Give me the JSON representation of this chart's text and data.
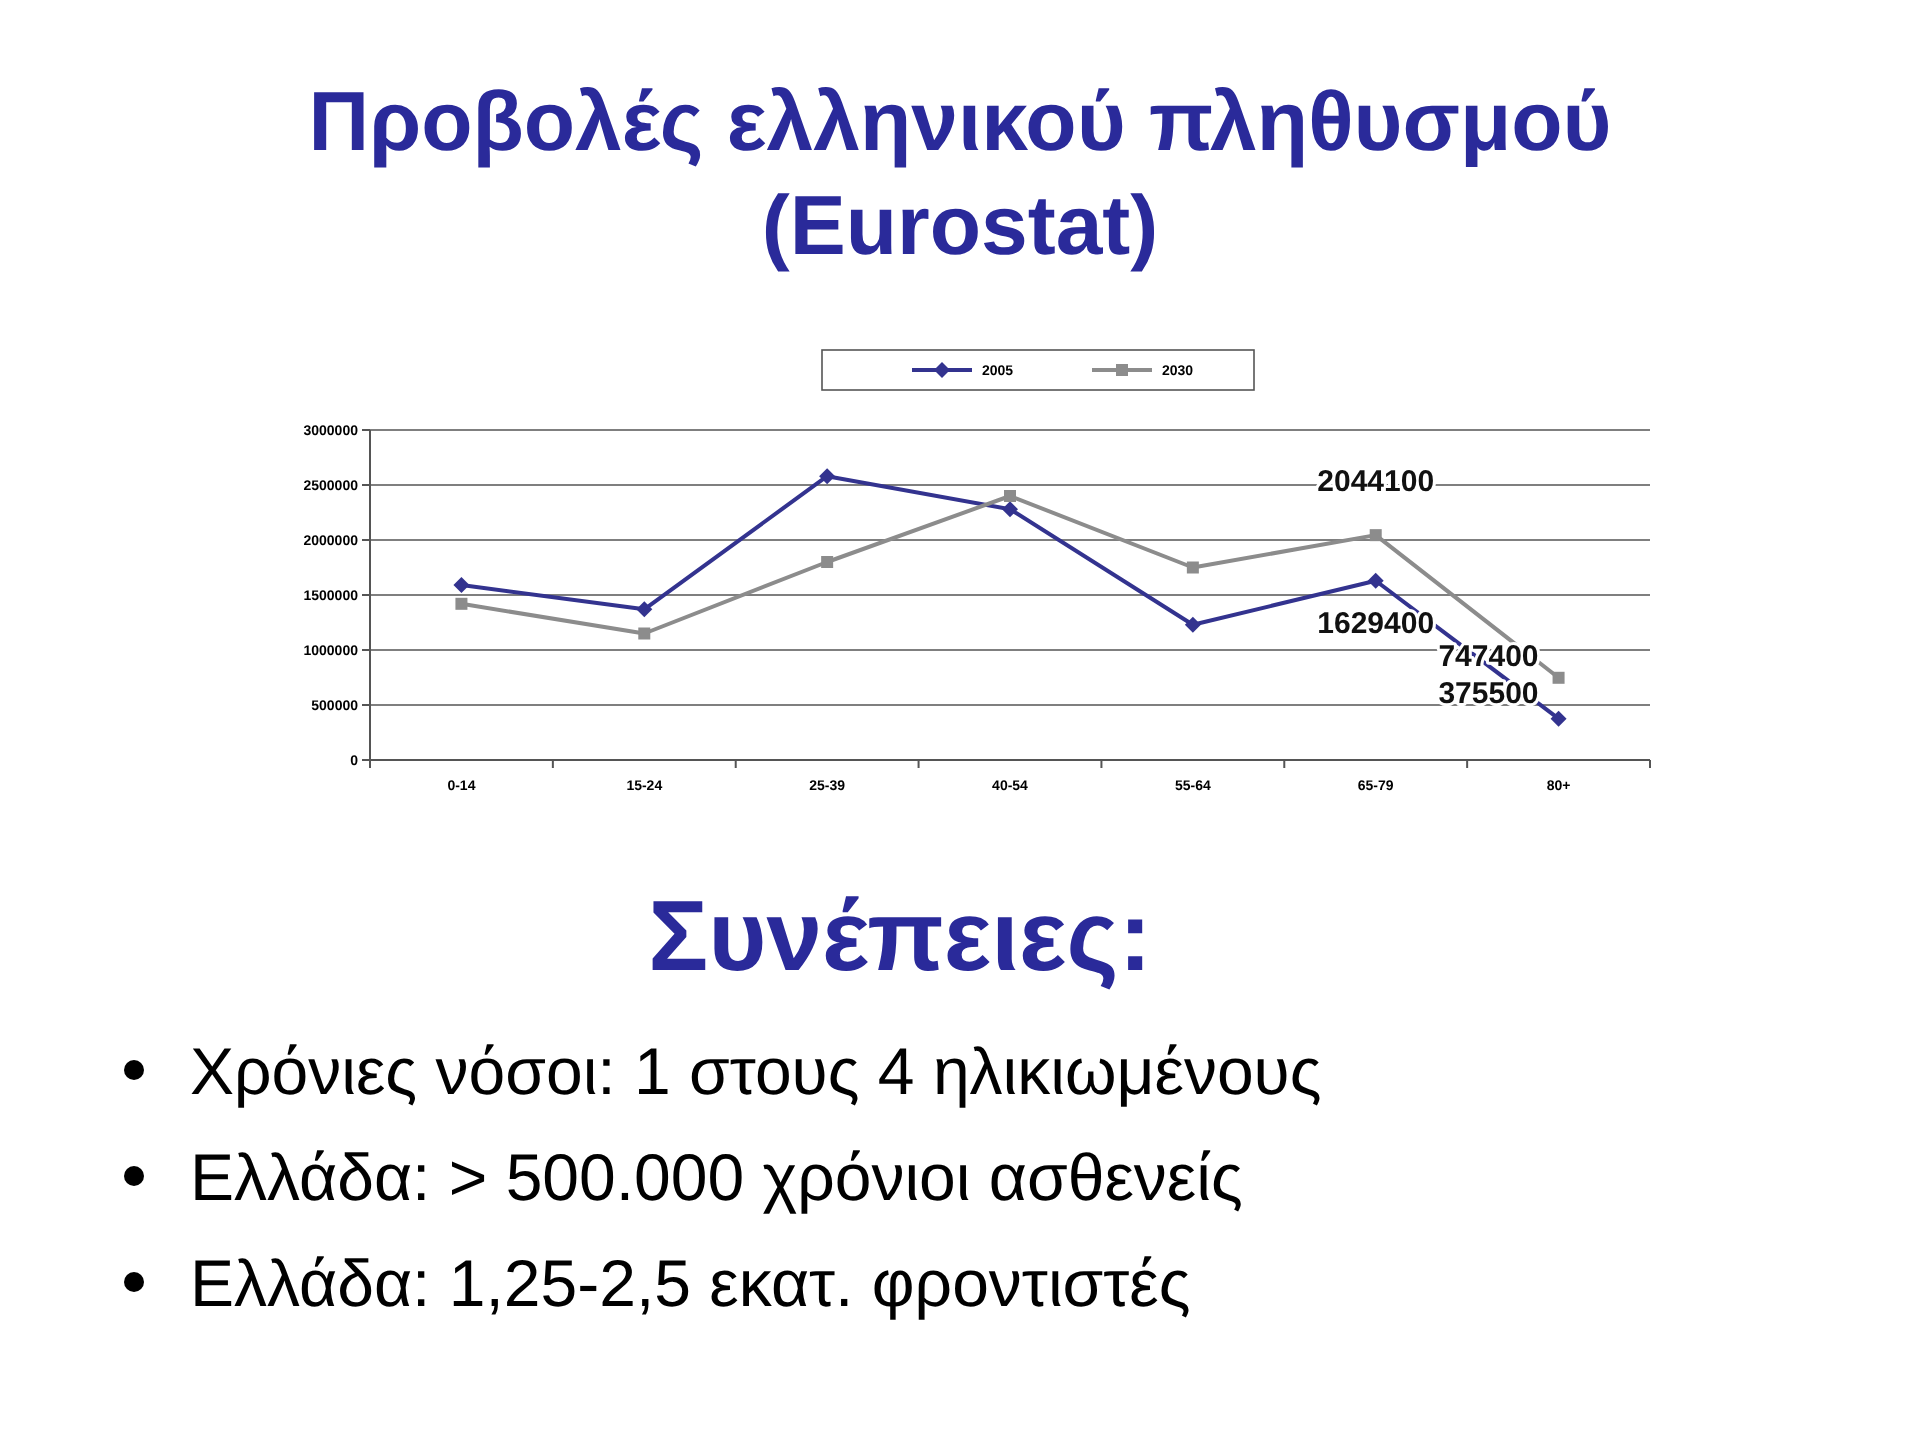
{
  "chart_data": {
    "type": "line",
    "title": "Προβολές ελληνικού πληθυσμού\n(Eurostat)",
    "categories": [
      "0-14",
      "15-24",
      "25-39",
      "40-54",
      "55-64",
      "65-79",
      "80+"
    ],
    "series": [
      {
        "name": "2005",
        "color": "#33338f",
        "marker": "diamond",
        "values": [
          1590000,
          1370000,
          2580000,
          2280000,
          1230000,
          1629400,
          375500
        ],
        "value_labels": [
          null,
          null,
          null,
          null,
          null,
          "1629400",
          "375500"
        ]
      },
      {
        "name": "2030",
        "color": "#8c8c8c",
        "marker": "square",
        "values": [
          1420000,
          1150000,
          1800000,
          2400000,
          1750000,
          2044100,
          747400
        ],
        "value_labels": [
          null,
          null,
          null,
          null,
          null,
          "2044100",
          "747400"
        ]
      }
    ],
    "ylim": [
      0,
      3000000
    ],
    "yticks": [
      0,
      500000,
      1000000,
      1500000,
      2000000,
      2500000,
      3000000
    ],
    "grid": "y",
    "legend": "top",
    "annotations": [
      "Συνέπειες:",
      "Χρόνιες νόσοι: 1 στους 4 ηλικιωμένους",
      "Ελλάδα: > 500.000 χρόνιοι ασθενείς",
      "Ελλάδα: 1,25-2,5 εκατ. φροντιστές"
    ]
  }
}
